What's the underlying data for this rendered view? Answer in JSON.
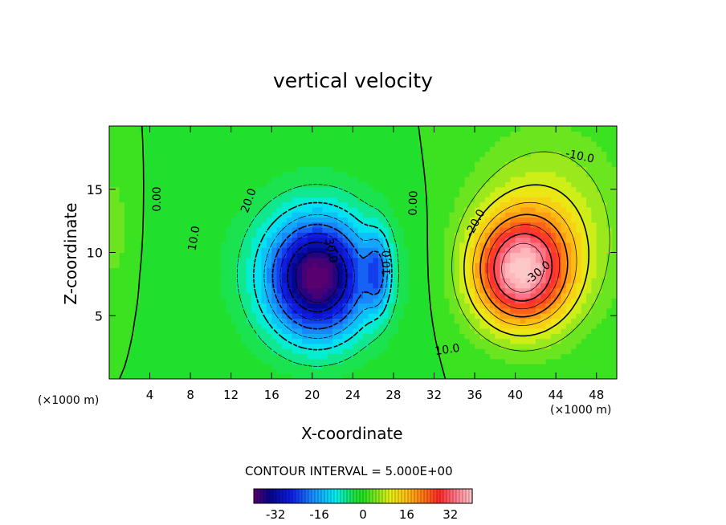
{
  "chart_data": {
    "type": "heatmap",
    "title": "vertical velocity",
    "xlabel": "X-coordinate",
    "ylabel": "Z-coordinate",
    "x_unit_left": "(×1000 m)",
    "x_unit_right": "(×1000 m)",
    "xlim": [
      0,
      50
    ],
    "ylim": [
      0,
      20
    ],
    "xticks": [
      4,
      8,
      12,
      16,
      20,
      24,
      28,
      32,
      36,
      40,
      44,
      48
    ],
    "yticks": [
      5,
      10,
      15
    ],
    "contour_interval_text": "CONTOUR INTERVAL = 5.000E+00",
    "contour_interval": 5,
    "value_range": [
      -40,
      40
    ],
    "colorbar_ticks": [
      "-32",
      "-16",
      "0",
      "16",
      "32"
    ],
    "contour_labels": [
      "0.00",
      "10.0",
      "20.0",
      "30.0",
      "0.00",
      "-10.0",
      "-20.0",
      "-30.0",
      "-10.0"
    ],
    "features": [
      {
        "kind": "updraft",
        "center_x": 40.5,
        "center_z": 8.5,
        "peak": 35
      },
      {
        "kind": "downdraft",
        "center_x": 20.5,
        "center_z": 8.0,
        "peak": -37
      },
      {
        "kind": "weak downdraft",
        "center_x": 26.5,
        "center_z": 8.5,
        "peak": -14
      }
    ],
    "colors": {
      "positive_peak": "#ff3b2b",
      "negative_peak": "#0a0ad6",
      "zero": "#22e022"
    }
  }
}
